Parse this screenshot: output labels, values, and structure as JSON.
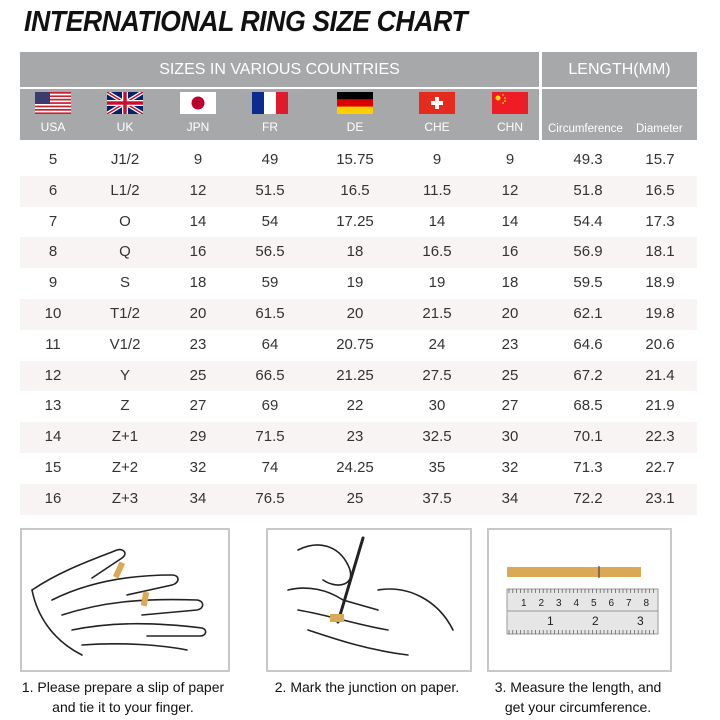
{
  "title": "INTERNATIONAL RING SIZE CHART",
  "header": {
    "sizes_label": "SIZES IN VARIOUS COUNTRIES",
    "length_label": "LENGTH(MM)",
    "countries": [
      {
        "code": "USA",
        "flag": "us-flag"
      },
      {
        "code": "UK",
        "flag": "uk-flag"
      },
      {
        "code": "JPN",
        "flag": "japan-flag"
      },
      {
        "code": "FR",
        "flag": "france-flag"
      },
      {
        "code": "DE",
        "flag": "germany-flag"
      },
      {
        "code": "CHE",
        "flag": "switzerland-flag"
      },
      {
        "code": "CHN",
        "flag": "china-flag"
      }
    ],
    "length_columns": [
      "Circumference",
      "Diameter"
    ]
  },
  "rows": [
    [
      "5",
      "J1/2",
      "9",
      "49",
      "15.75",
      "9",
      "9",
      "49.3",
      "15.7"
    ],
    [
      "6",
      "L1/2",
      "12",
      "51.5",
      "16.5",
      "11.5",
      "12",
      "51.8",
      "16.5"
    ],
    [
      "7",
      "O",
      "14",
      "54",
      "17.25",
      "14",
      "14",
      "54.4",
      "17.3"
    ],
    [
      "8",
      "Q",
      "16",
      "56.5",
      "18",
      "16.5",
      "16",
      "56.9",
      "18.1"
    ],
    [
      "9",
      "S",
      "18",
      "59",
      "19",
      "19",
      "18",
      "59.5",
      "18.9"
    ],
    [
      "10",
      "T1/2",
      "20",
      "61.5",
      "20",
      "21.5",
      "20",
      "62.1",
      "19.8"
    ],
    [
      "11",
      "V1/2",
      "23",
      "64",
      "20.75",
      "24",
      "23",
      "64.6",
      "20.6"
    ],
    [
      "12",
      "Y",
      "25",
      "66.5",
      "21.25",
      "27.5",
      "25",
      "67.2",
      "21.4"
    ],
    [
      "13",
      "Z",
      "27",
      "69",
      "22",
      "30",
      "27",
      "68.5",
      "21.9"
    ],
    [
      "14",
      "Z+1",
      "29",
      "71.5",
      "23",
      "32.5",
      "30",
      "70.1",
      "22.3"
    ],
    [
      "15",
      "Z+2",
      "32",
      "74",
      "24.25",
      "35",
      "32",
      "71.3",
      "22.7"
    ],
    [
      "16",
      "Z+3",
      "34",
      "76.5",
      "25",
      "37.5",
      "34",
      "72.2",
      "23.1"
    ]
  ],
  "steps": [
    {
      "line1": "1. Please prepare a slip of paper",
      "line2": "and tie it to your finger."
    },
    {
      "line1": "2. Mark the junction on paper.",
      "line2": ""
    },
    {
      "line1": "3. Measure the length, and",
      "line2": "get your circumference."
    }
  ],
  "ruler": {
    "cm": [
      "1",
      "2",
      "3",
      "4",
      "5",
      "6",
      "7",
      "8"
    ],
    "inch": [
      "1",
      "2",
      "3"
    ]
  },
  "colors": {
    "header_bg": "#a7a8aa",
    "alt_row": "#f8f4f3",
    "paper_strip": "#d9a955"
  }
}
